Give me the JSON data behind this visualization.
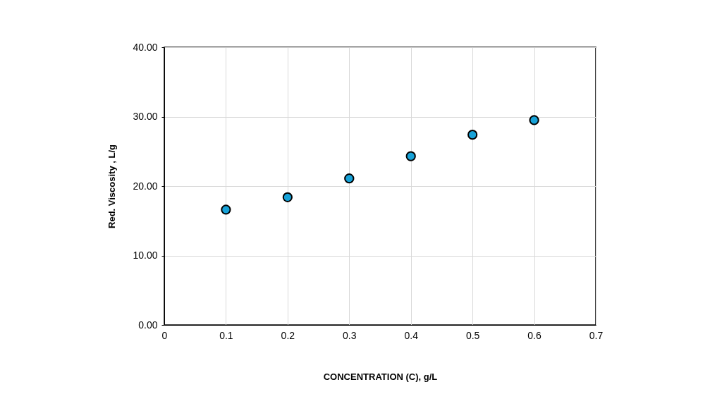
{
  "chart_data": {
    "type": "scatter",
    "xlabel": "CONCENTRATION (C), g/L",
    "ylabel": "Red. Viscosity , L/g",
    "x": [
      0.1,
      0.2,
      0.3,
      0.4,
      0.5,
      0.6
    ],
    "series": [
      {
        "color": "#17a2d8",
        "values": [
          16.6,
          18.4,
          21.1,
          24.3,
          27.4,
          29.5
        ]
      }
    ],
    "xlim": [
      0,
      0.7
    ],
    "xticks": [
      0,
      0.1,
      0.2,
      0.3,
      0.4,
      0.5,
      0.6,
      0.7
    ],
    "ylim": [
      0,
      40
    ],
    "yticks": [
      {
        "value": 0,
        "label": "0.00"
      },
      {
        "value": 10,
        "label": "10.00"
      },
      {
        "value": 20,
        "label": "20.00"
      },
      {
        "value": 30,
        "label": "30.00"
      },
      {
        "value": 40,
        "label": "40.00"
      }
    ],
    "grid": true,
    "marker": "circle",
    "legend": false
  }
}
